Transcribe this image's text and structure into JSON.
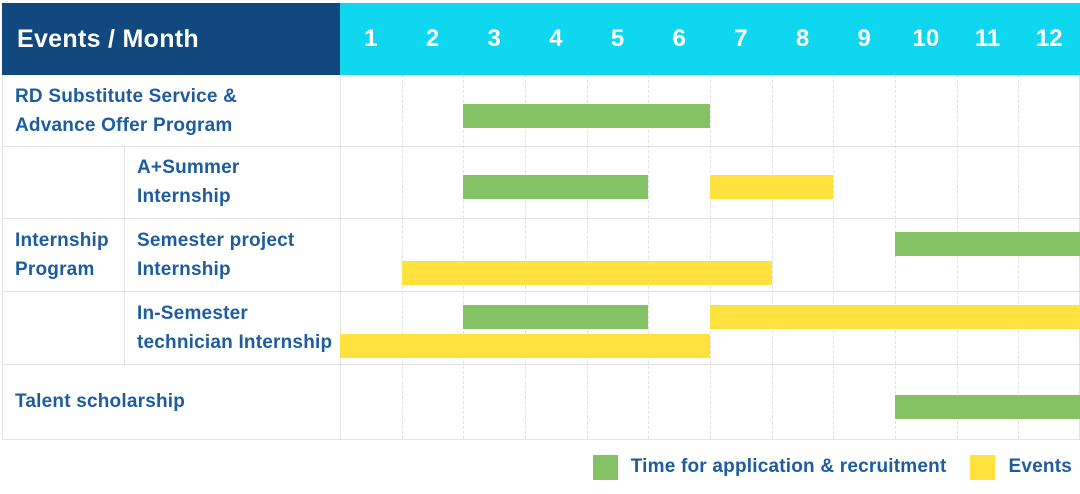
{
  "title_cell": "Events / Month",
  "months": [
    "1",
    "2",
    "3",
    "4",
    "5",
    "6",
    "7",
    "8",
    "9",
    "10",
    "11",
    "12"
  ],
  "colors": {
    "navy": "#11497F",
    "cyan": "#0ED7EF",
    "green": "#85C266",
    "yellow": "#FFE23E",
    "label_text": "#1D5C9E",
    "grid_border": "#E3E3E3"
  },
  "legend": {
    "items": [
      {
        "swatch": "green",
        "label": "Time for application & recruitment"
      },
      {
        "swatch": "yellow",
        "label": "Events"
      }
    ]
  },
  "chart_data": {
    "type": "bar",
    "subtype": "gantt-timeline",
    "title": "Events / Month",
    "x_unit": "month",
    "x_ticks": [
      1,
      2,
      3,
      4,
      5,
      6,
      7,
      8,
      9,
      10,
      11,
      12
    ],
    "x_range": [
      1,
      12
    ],
    "grid": true,
    "legend_entries": {
      "green": "Time for application & recruitment",
      "yellow": "Events"
    },
    "group_label": "Internship Program",
    "group_label_lines": [
      "Internship",
      "Program"
    ],
    "rows": [
      {
        "label": "RD Substitute Service & Advance Offer Program",
        "label_lines": [
          "RD Substitute Service &",
          "Advance Offer Program"
        ],
        "group": "",
        "lanes": [
          [
            {
              "color": "green",
              "start_month": 3,
              "end_month": 6
            }
          ]
        ]
      },
      {
        "label": "A+Summer Internship",
        "label_lines": [
          "A+Summer",
          "Internship"
        ],
        "group": "Internship Program",
        "lanes": [
          [
            {
              "color": "green",
              "start_month": 3,
              "end_month": 5
            },
            {
              "color": "yellow",
              "start_month": 7,
              "end_month": 8
            }
          ]
        ]
      },
      {
        "label": "Semester project Internship",
        "label_lines": [
          "Semester project",
          "Internship"
        ],
        "group": "Internship Program",
        "lanes": [
          [
            {
              "color": "green",
              "start_month": 10,
              "end_month": 12
            }
          ],
          [
            {
              "color": "yellow",
              "start_month": 2,
              "end_month": 7
            }
          ]
        ]
      },
      {
        "label": "In-Semester technician Internship",
        "label_lines": [
          "In-Semester",
          "technician Internship"
        ],
        "group": "Internship Program",
        "lanes": [
          [
            {
              "color": "green",
              "start_month": 3,
              "end_month": 5
            },
            {
              "color": "yellow",
              "start_month": 7,
              "end_month": 12
            }
          ],
          [
            {
              "color": "yellow",
              "start_month": 1,
              "end_month": 6
            }
          ]
        ]
      },
      {
        "label": "Talent scholarship",
        "label_lines": [
          "Talent scholarship"
        ],
        "group": "",
        "lanes": [
          [
            {
              "color": "green",
              "start_month": 10,
              "end_month": 12
            }
          ]
        ]
      }
    ]
  }
}
